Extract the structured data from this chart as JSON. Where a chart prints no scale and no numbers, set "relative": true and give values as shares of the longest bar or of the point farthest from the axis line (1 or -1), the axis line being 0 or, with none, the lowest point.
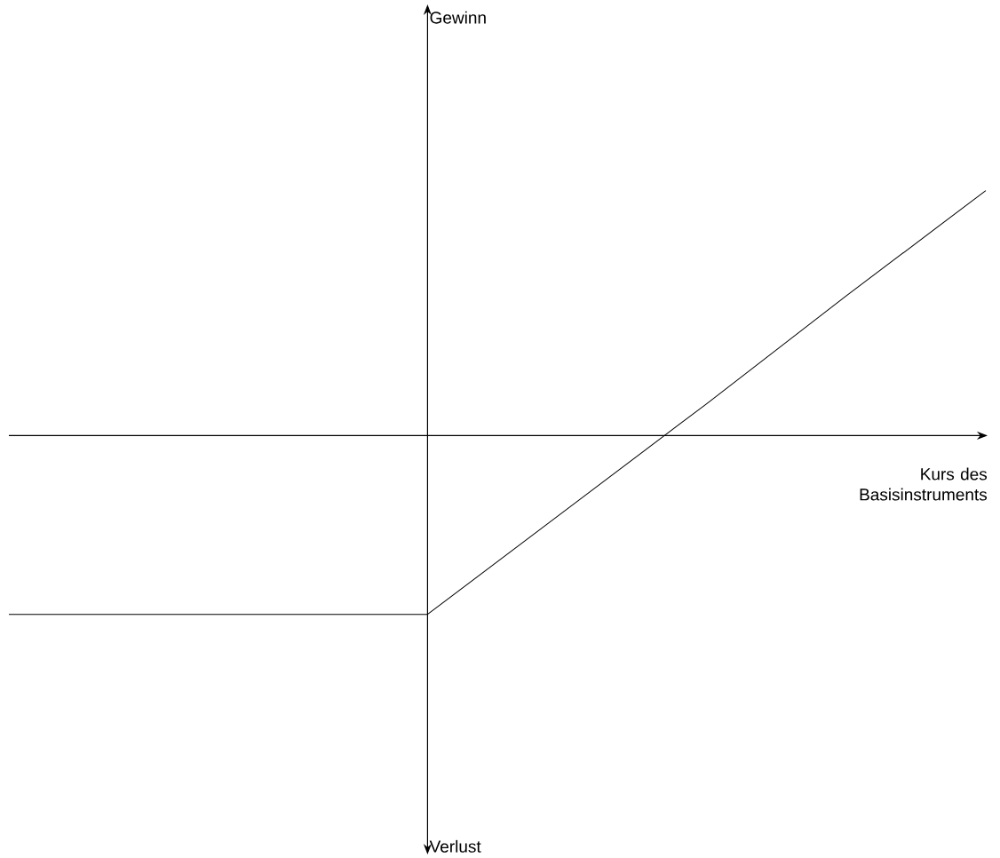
{
  "chart_data": {
    "type": "line",
    "relative": true,
    "xlabel": "Kurs des Basisinstruments",
    "annotations": [
      "Gewinn",
      "Verlust"
    ],
    "categories": [
      null,
      null,
      null,
      null,
      null,
      null,
      null,
      null
    ],
    "series": [
      {
        "color": "#000000",
        "values": [
          -0.73,
          -0.73,
          -0.73,
          -0.73,
          -0.3,
          0.13,
          0.57,
          1.0
        ]
      }
    ],
    "marker": "none",
    "line_style": "solid"
  }
}
